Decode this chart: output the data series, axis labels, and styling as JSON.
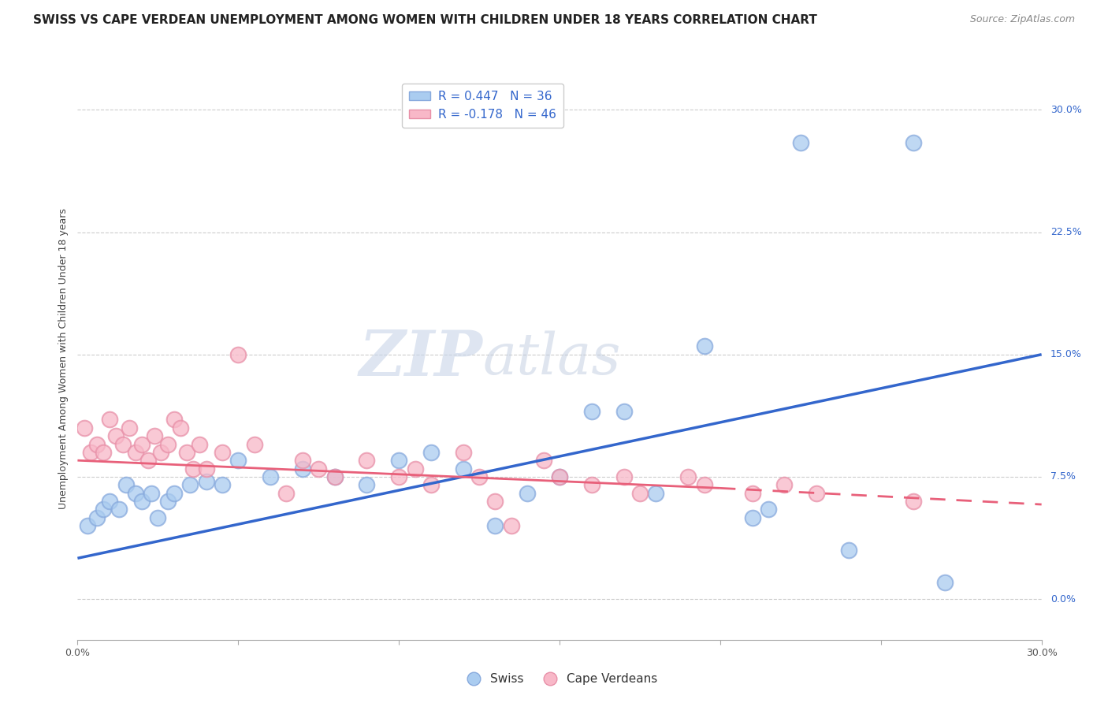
{
  "title": "SWISS VS CAPE VERDEAN UNEMPLOYMENT AMONG WOMEN WITH CHILDREN UNDER 18 YEARS CORRELATION CHART",
  "source": "Source: ZipAtlas.com",
  "ylabel": "Unemployment Among Women with Children Under 18 years",
  "ytick_values": [
    0.0,
    7.5,
    15.0,
    22.5,
    30.0
  ],
  "xlim": [
    0.0,
    30.0
  ],
  "ylim": [
    -2.5,
    32.0
  ],
  "legend_label_swiss": "Swiss",
  "legend_label_cv": "Cape Verdeans",
  "swiss_color": "#aaccf0",
  "swiss_edge_color": "#88aadd",
  "cv_color": "#f8b8c8",
  "cv_edge_color": "#e890a8",
  "swiss_line_color": "#3366cc",
  "cv_line_color": "#e8607a",
  "background_color": "#ffffff",
  "grid_color": "#cccccc",
  "swiss_scatter": [
    [
      0.3,
      4.5
    ],
    [
      0.6,
      5.0
    ],
    [
      0.8,
      5.5
    ],
    [
      1.0,
      6.0
    ],
    [
      1.3,
      5.5
    ],
    [
      1.5,
      7.0
    ],
    [
      1.8,
      6.5
    ],
    [
      2.0,
      6.0
    ],
    [
      2.3,
      6.5
    ],
    [
      2.5,
      5.0
    ],
    [
      2.8,
      6.0
    ],
    [
      3.0,
      6.5
    ],
    [
      3.5,
      7.0
    ],
    [
      4.0,
      7.2
    ],
    [
      4.5,
      7.0
    ],
    [
      5.0,
      8.5
    ],
    [
      6.0,
      7.5
    ],
    [
      7.0,
      8.0
    ],
    [
      8.0,
      7.5
    ],
    [
      9.0,
      7.0
    ],
    [
      10.0,
      8.5
    ],
    [
      11.0,
      9.0
    ],
    [
      12.0,
      8.0
    ],
    [
      13.0,
      4.5
    ],
    [
      14.0,
      6.5
    ],
    [
      15.0,
      7.5
    ],
    [
      16.0,
      11.5
    ],
    [
      17.0,
      11.5
    ],
    [
      18.0,
      6.5
    ],
    [
      19.5,
      15.5
    ],
    [
      21.0,
      5.0
    ],
    [
      21.5,
      5.5
    ],
    [
      22.5,
      28.0
    ],
    [
      24.0,
      3.0
    ],
    [
      26.0,
      28.0
    ],
    [
      27.0,
      1.0
    ]
  ],
  "cv_scatter": [
    [
      0.2,
      10.5
    ],
    [
      0.4,
      9.0
    ],
    [
      0.6,
      9.5
    ],
    [
      0.8,
      9.0
    ],
    [
      1.0,
      11.0
    ],
    [
      1.2,
      10.0
    ],
    [
      1.4,
      9.5
    ],
    [
      1.6,
      10.5
    ],
    [
      1.8,
      9.0
    ],
    [
      2.0,
      9.5
    ],
    [
      2.2,
      8.5
    ],
    [
      2.4,
      10.0
    ],
    [
      2.6,
      9.0
    ],
    [
      2.8,
      9.5
    ],
    [
      3.0,
      11.0
    ],
    [
      3.2,
      10.5
    ],
    [
      3.4,
      9.0
    ],
    [
      3.6,
      8.0
    ],
    [
      3.8,
      9.5
    ],
    [
      4.0,
      8.0
    ],
    [
      4.5,
      9.0
    ],
    [
      5.0,
      15.0
    ],
    [
      5.5,
      9.5
    ],
    [
      6.5,
      6.5
    ],
    [
      7.0,
      8.5
    ],
    [
      7.5,
      8.0
    ],
    [
      8.0,
      7.5
    ],
    [
      9.0,
      8.5
    ],
    [
      10.0,
      7.5
    ],
    [
      10.5,
      8.0
    ],
    [
      11.0,
      7.0
    ],
    [
      12.0,
      9.0
    ],
    [
      12.5,
      7.5
    ],
    [
      13.0,
      6.0
    ],
    [
      13.5,
      4.5
    ],
    [
      14.5,
      8.5
    ],
    [
      15.0,
      7.5
    ],
    [
      16.0,
      7.0
    ],
    [
      17.0,
      7.5
    ],
    [
      17.5,
      6.5
    ],
    [
      19.0,
      7.5
    ],
    [
      19.5,
      7.0
    ],
    [
      21.0,
      6.5
    ],
    [
      22.0,
      7.0
    ],
    [
      23.0,
      6.5
    ],
    [
      26.0,
      6.0
    ]
  ],
  "swiss_line": [
    0.0,
    2.5,
    30.0,
    15.0
  ],
  "cv_line_solid": [
    0.0,
    8.5,
    20.0,
    6.8
  ],
  "cv_line_dash": [
    20.0,
    6.8,
    30.0,
    5.8
  ],
  "watermark_zip": "ZIP",
  "watermark_atlas": "atlas",
  "title_fontsize": 11,
  "source_fontsize": 9,
  "label_fontsize": 9,
  "tick_fontsize": 9,
  "legend_r_swiss": "R = 0.447   N = 36",
  "legend_r_cv": "R = -0.178   N = 46"
}
